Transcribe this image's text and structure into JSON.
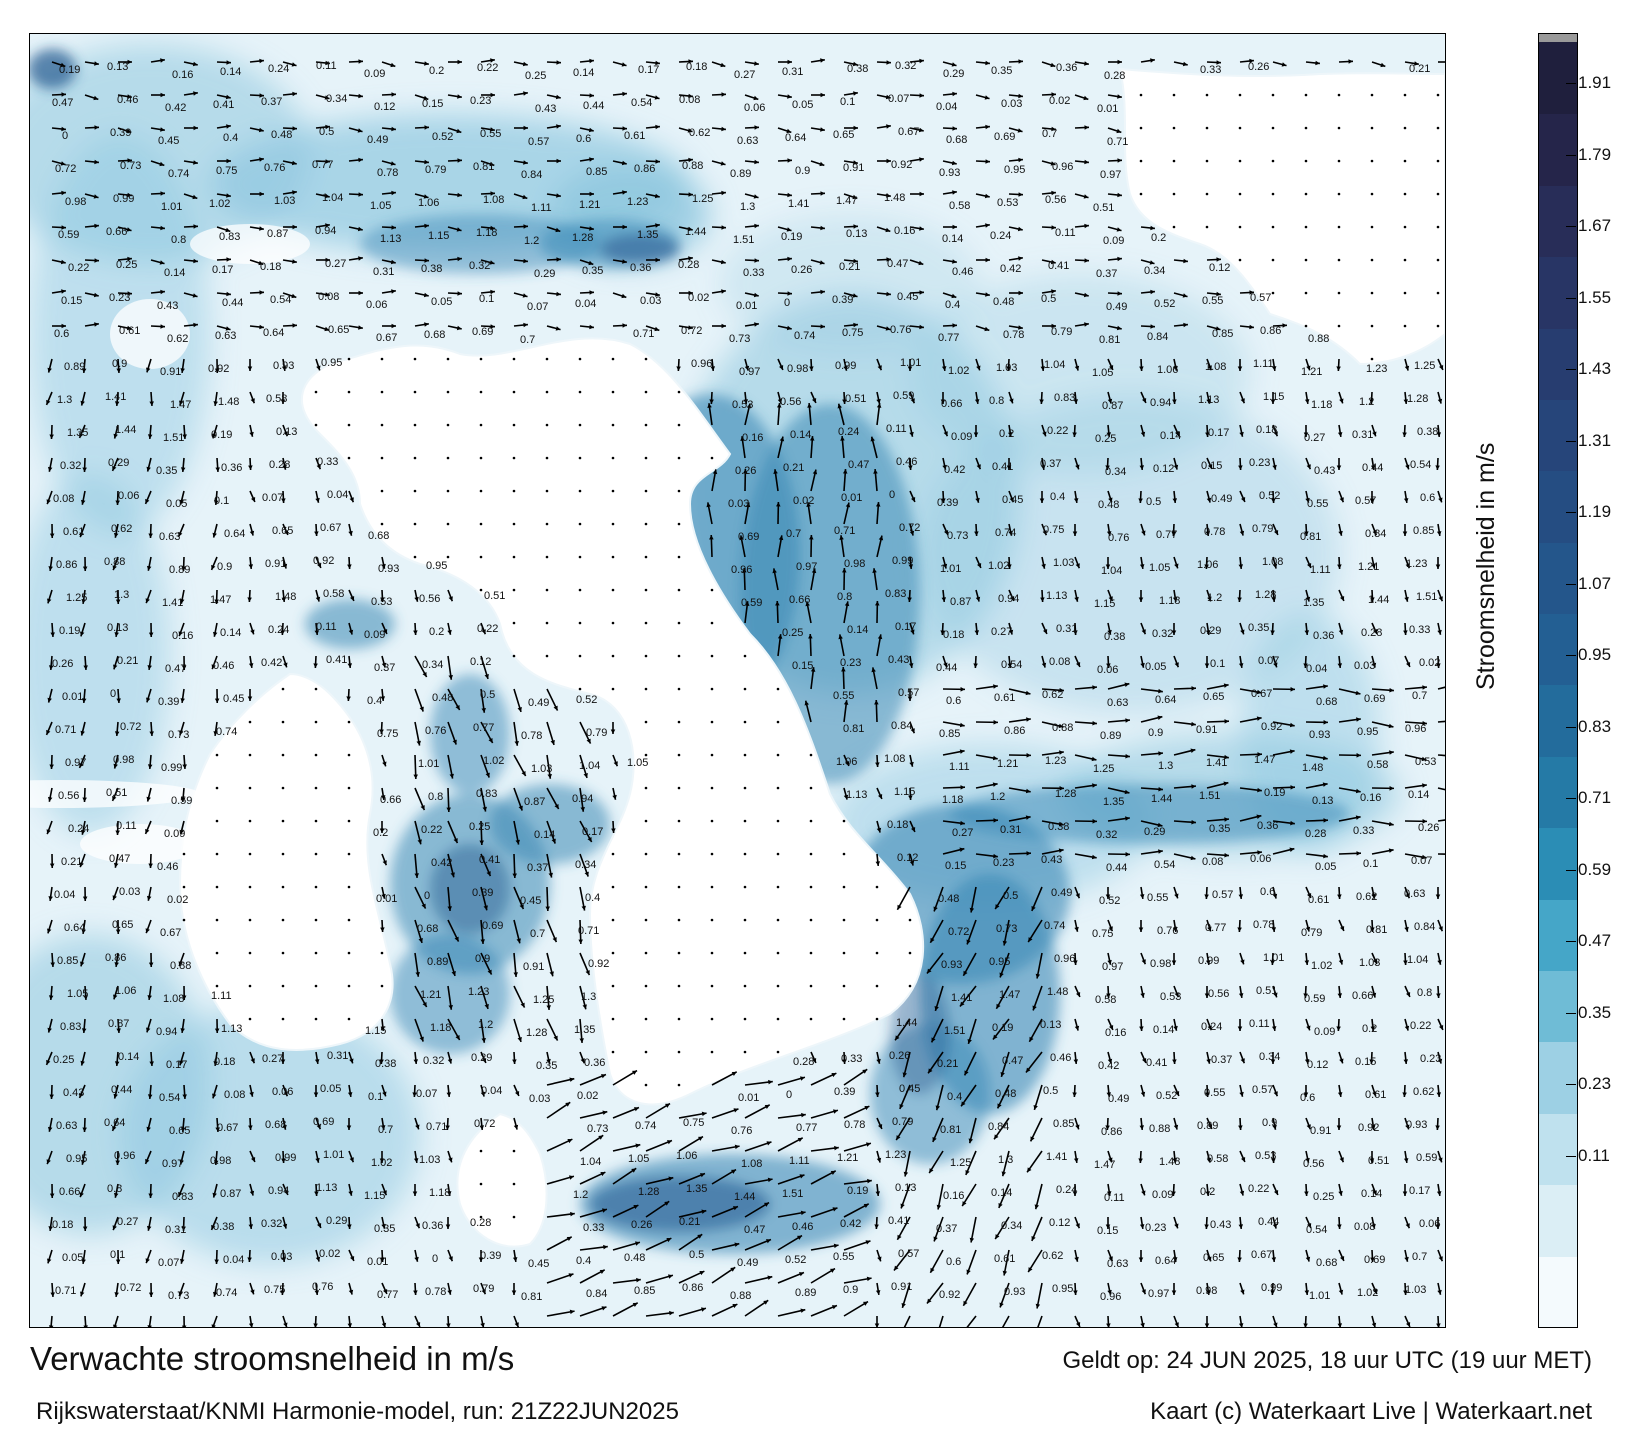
{
  "title": "Verwachte stroomsnelheid in m/s",
  "model_info": "Rijkswaterstaat/KNMI Harmonie-model, run: 21Z22JUN2025",
  "valid_time": "Geldt op: 24 JUN 2025, 18 uur UTC (19 uur MET)",
  "credit": "Kaart (c) Waterkaart Live | Waterkaart.net",
  "legend": {
    "label": "Stroomsnelheid in m/s",
    "ticks": [
      "1.91",
      "1.79",
      "1.67",
      "1.55",
      "1.43",
      "1.31",
      "1.19",
      "1.07",
      "0.95",
      "0.83",
      "0.71",
      "0.59",
      "0.47",
      "0.35",
      "0.23",
      "0.11"
    ],
    "colors": [
      "#f4fafd",
      "#dbeef5",
      "#bfe1ee",
      "#9dd0e4",
      "#6fbcd6",
      "#45a6c8",
      "#2b8db5",
      "#257aa6",
      "#236c9c",
      "#235f93",
      "#24568b",
      "#254d82",
      "#26457a",
      "#273d70",
      "#283565",
      "#282d58",
      "#25254a",
      "#1f1f3d"
    ],
    "top_color": "#9a9a9a"
  },
  "colors": {
    "land": "#ffffff",
    "sea_light": "#e6f3f9",
    "sea_mid": "#8ec7df",
    "channel": "#3a88b5",
    "channel_deep": "#24598f",
    "arrow": "#000000"
  },
  "speed_labels": [
    "0.19",
    "0.13",
    "0.16",
    "0.14",
    "0.24",
    "0.11",
    "0.09",
    "0.2",
    "0.22",
    "0.25",
    "0.14",
    "0.17",
    "0.18",
    "0.27",
    "0.31",
    "0.38",
    "0.32",
    "0.29",
    "0.35",
    "0.36",
    "0.28",
    "0.33",
    "0.26",
    "0.21",
    "0.47",
    "0.46",
    "0.42",
    "0.41",
    "0.37",
    "0.34",
    "0.12",
    "0.15",
    "0.23",
    "0.43",
    "0.44",
    "0.54",
    "0.08",
    "0.06",
    "0.05",
    "0.1",
    "0.07",
    "0.04",
    "0.03",
    "0.02",
    "0.01",
    "0",
    "0.39",
    "0.45",
    "0.4",
    "0.48",
    "0.5",
    "0.49",
    "0.52",
    "0.55",
    "0.57",
    "0.6",
    "0.61",
    "0.62",
    "0.63",
    "0.64",
    "0.65",
    "0.67",
    "0.68",
    "0.69",
    "0.7",
    "0.71",
    "0.72",
    "0.73",
    "0.74",
    "0.75",
    "0.76",
    "0.77",
    "0.78",
    "0.79",
    "0.81",
    "0.84",
    "0.85",
    "0.86",
    "0.88",
    "0.89",
    "0.9",
    "0.91",
    "0.92",
    "0.93",
    "0.95",
    "0.96",
    "0.97",
    "0.98",
    "0.99",
    "1.01",
    "1.02",
    "1.03",
    "1.04",
    "1.05",
    "1.06",
    "1.08",
    "1.11",
    "1.21",
    "1.23",
    "1.25",
    "1.3",
    "1.41",
    "1.47",
    "1.48",
    "0.58",
    "0.53",
    "0.56",
    "0.51",
    "0.59",
    "0.66",
    "0.8",
    "0.83",
    "0.87",
    "0.94",
    "1.13",
    "1.15",
    "1.18",
    "1.2",
    "1.28",
    "1.35",
    "1.44",
    "1.51"
  ]
}
